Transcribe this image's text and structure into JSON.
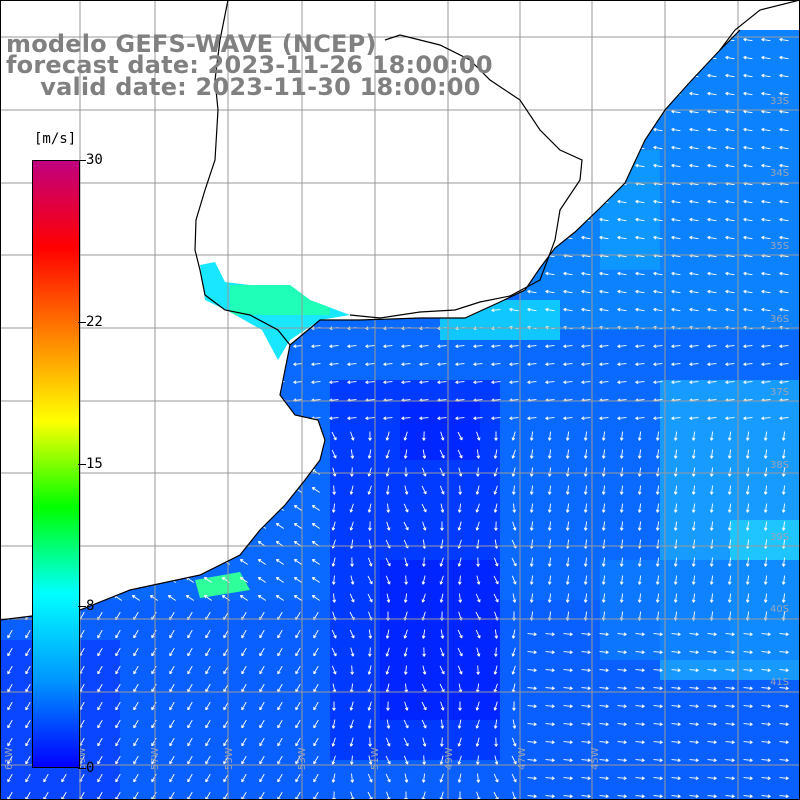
{
  "title": {
    "line1": "modelo GEFS-WAVE (NCEP)",
    "line2": "forecast date: 2023-11-26 18:00:00",
    "line3": "    valid date: 2023-11-30 18:00:00"
  },
  "colorbar": {
    "unit": "[m/s]",
    "ticks": [
      "30",
      "22",
      "15",
      "8",
      "0"
    ],
    "tick_values": [
      30,
      22,
      15,
      8,
      0
    ],
    "colors": [
      "#0000ff",
      "#0096ff",
      "#00ffff",
      "#00ff00",
      "#ffff00",
      "#ff8000",
      "#ff0000",
      "#c00080"
    ]
  },
  "map": {
    "longitude_labels": [
      "61W",
      "59W",
      "57W",
      "55W",
      "53W",
      "51W",
      "49W",
      "47W",
      "45W"
    ],
    "latitude_labels": [
      "33S",
      "34S",
      "35S",
      "36S",
      "37S",
      "38S",
      "39S",
      "40S",
      "41S"
    ],
    "land_color": "#ffffff",
    "grid_color": "#999999",
    "arrow_color": "#ffffff"
  }
}
